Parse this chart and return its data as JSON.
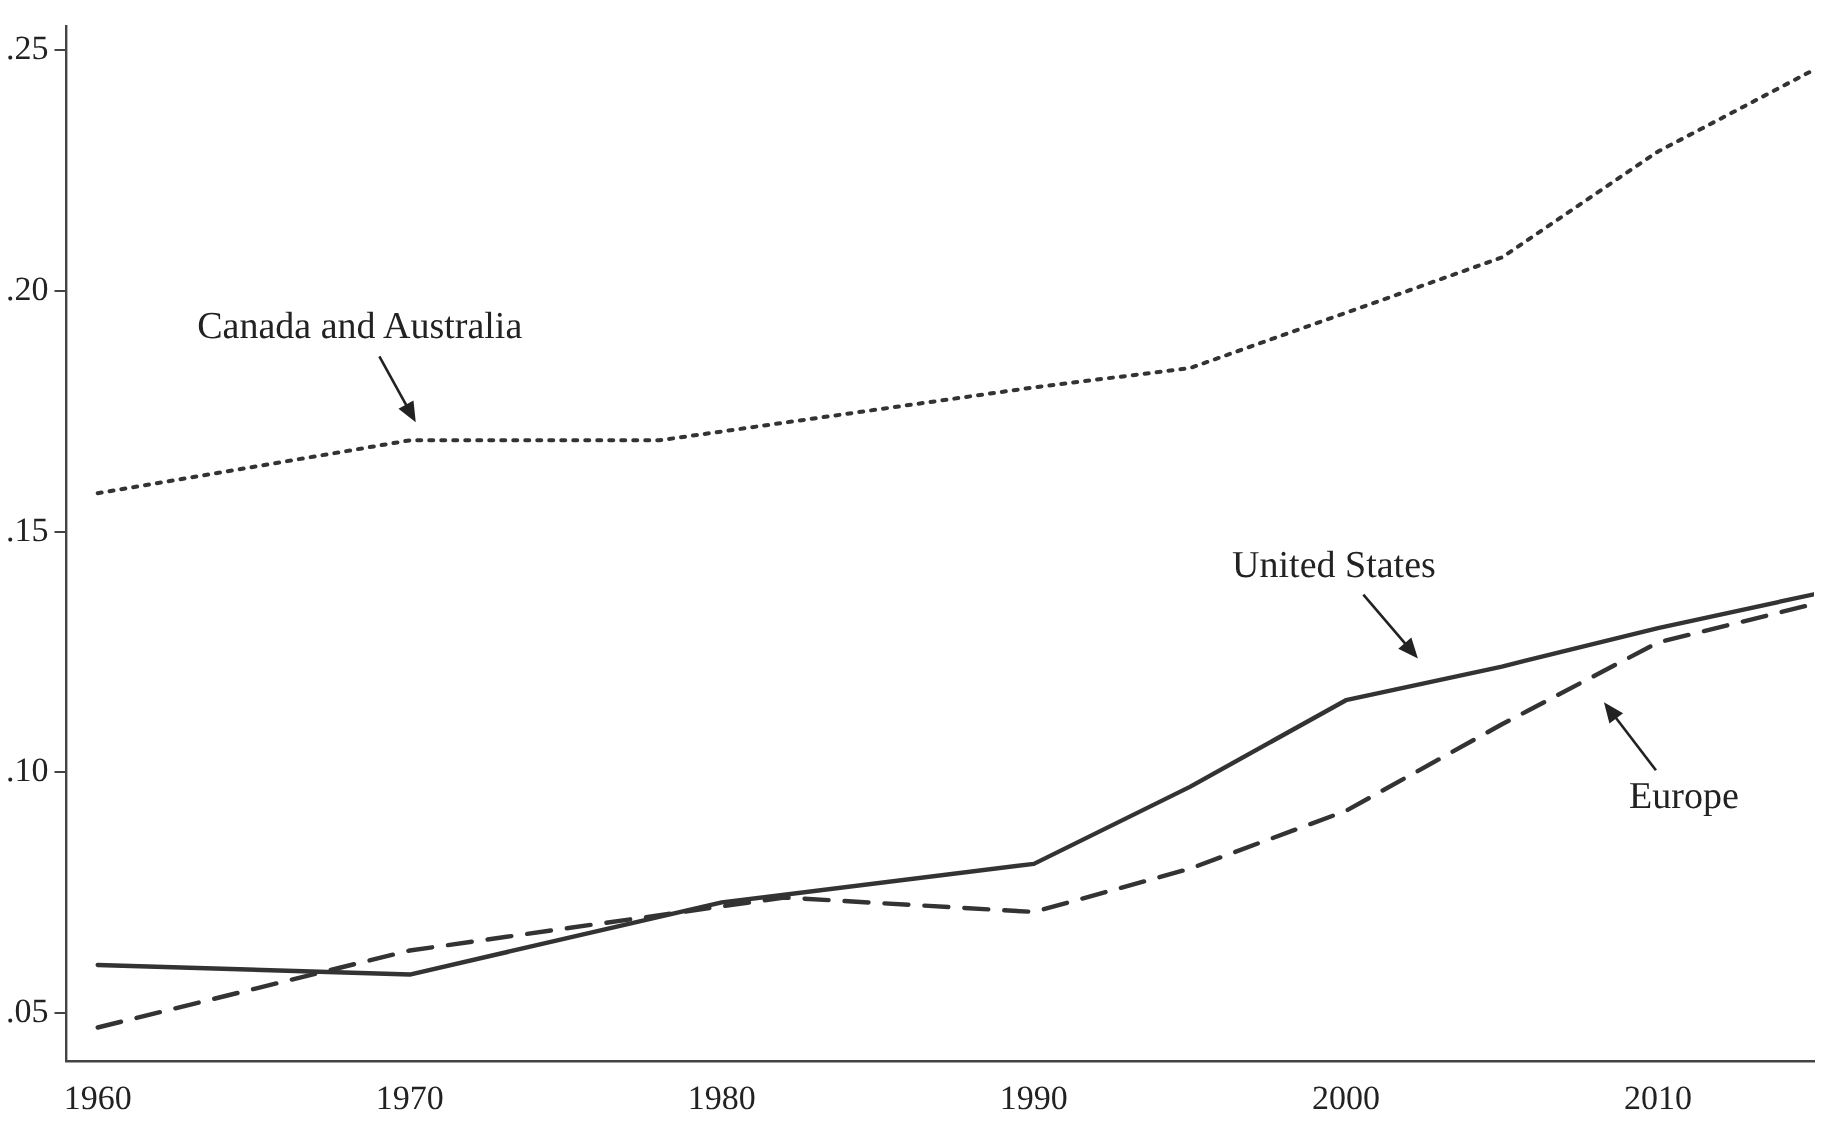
{
  "chart_data": {
    "type": "line",
    "xlim": [
      1959,
      2015
    ],
    "ylim": [
      0.04,
      0.255
    ],
    "xticks": [
      1960,
      1970,
      1980,
      1990,
      2000,
      2010
    ],
    "yticks": [
      {
        "value": 0.05,
        "label": ".05"
      },
      {
        "value": 0.1,
        "label": ".10"
      },
      {
        "value": 0.15,
        "label": ".15"
      },
      {
        "value": 0.2,
        "label": ".20"
      },
      {
        "value": 0.25,
        "label": ".25"
      }
    ],
    "grid": false,
    "legend": false,
    "marker": "none",
    "series": [
      {
        "name": "Canada and Australia",
        "color": "#333333",
        "line_style": "dotted",
        "x": [
          1960,
          1970,
          1978,
          1990,
          1995,
          2005,
          2010,
          2015
        ],
        "values": [
          0.158,
          0.169,
          0.169,
          0.18,
          0.184,
          0.207,
          0.229,
          0.246
        ]
      },
      {
        "name": "United States",
        "color": "#333333",
        "line_style": "solid",
        "x": [
          1960,
          1970,
          1980,
          1990,
          1995,
          2000,
          2005,
          2010,
          2015
        ],
        "values": [
          0.06,
          0.058,
          0.073,
          0.081,
          0.097,
          0.115,
          0.122,
          0.13,
          0.137
        ]
      },
      {
        "name": "Europe",
        "color": "#333333",
        "line_style": "dashed",
        "x": [
          1960,
          1970,
          1982,
          1990,
          1995,
          2000,
          2005,
          2010,
          2015
        ],
        "values": [
          0.047,
          0.063,
          0.074,
          0.071,
          0.08,
          0.092,
          0.11,
          0.127,
          0.135
        ]
      }
    ]
  }
}
